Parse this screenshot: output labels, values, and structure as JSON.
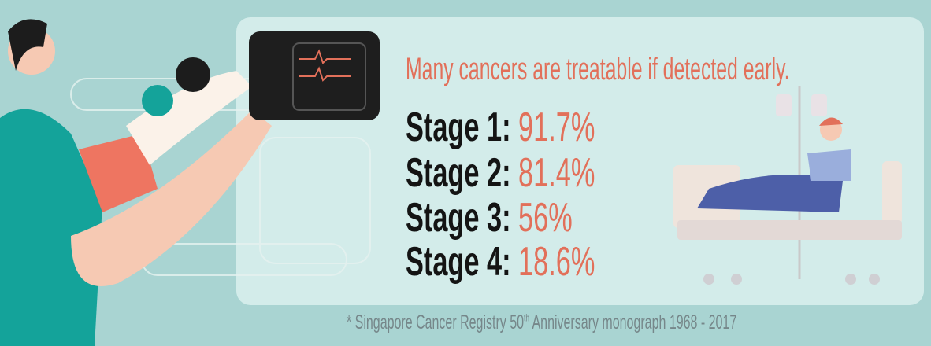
{
  "headline": "Many cancers are treatable if detected early.",
  "stages": [
    {
      "label": "Stage 1:",
      "value": "91.7%"
    },
    {
      "label": "Stage 2:",
      "value": "81.4%"
    },
    {
      "label": "Stage 3:",
      "value": "56%"
    },
    {
      "label": "Stage 4:",
      "value": "18.6%"
    }
  ],
  "footnote": {
    "prefix": "* Singapore Cancer Registry 50",
    "sup": "th",
    "suffix": " Anniversary monograph 1968 - 2017"
  },
  "colors": {
    "background": "#a9d4d2",
    "panel": "#d3ecea",
    "accent": "#e2705a",
    "text": "#141414",
    "footnote": "#76878a"
  }
}
